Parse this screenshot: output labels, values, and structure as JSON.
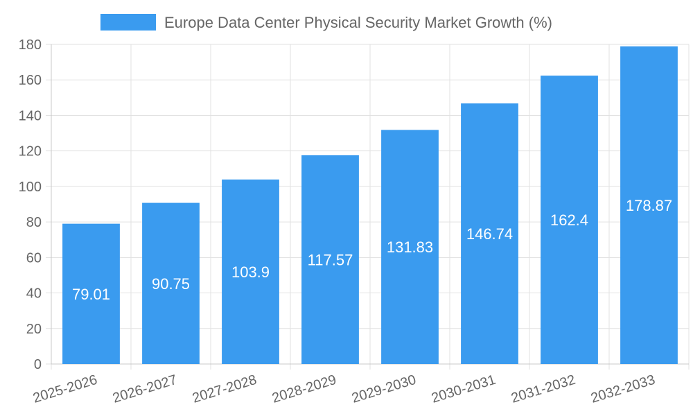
{
  "chart_data": {
    "type": "bar",
    "title": "",
    "xlabel": "",
    "ylabel": "",
    "categories": [
      "2025-2026",
      "2026-2027",
      "2027-2028",
      "2028-2029",
      "2029-2030",
      "2030-2031",
      "2031-2032",
      "2032-2033"
    ],
    "series": [
      {
        "name": "Europe Data Center Physical Security Market Growth (%)",
        "values": [
          79.01,
          90.75,
          103.9,
          117.57,
          131.83,
          146.74,
          162.4,
          178.87
        ],
        "color": "#3a9bef"
      }
    ],
    "ylim": [
      0,
      180
    ],
    "yticks": [
      0,
      20,
      40,
      60,
      80,
      100,
      120,
      140,
      160,
      180
    ],
    "grid": true,
    "legend": "top-center",
    "data_labels": true
  }
}
